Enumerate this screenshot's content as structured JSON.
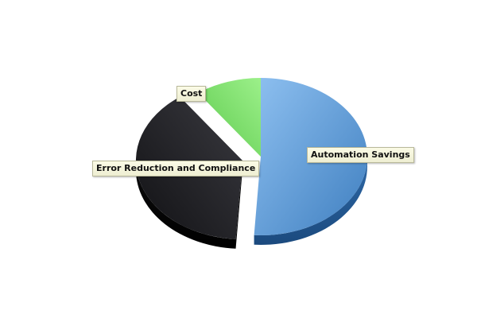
{
  "chart_data": {
    "type": "pie",
    "style": "3d-exploded",
    "slices": [
      {
        "label": "Automation Savings",
        "value": 51,
        "color": "#5b9bd8",
        "exploded": false
      },
      {
        "label": "Error Reduction and Compliance",
        "value": 39,
        "color": "#1c1c1e",
        "exploded": true
      },
      {
        "label": "Cost",
        "value": 10,
        "color": "#6fe060",
        "exploded": false
      }
    ],
    "legend": "none",
    "labels": "callout-boxes"
  }
}
